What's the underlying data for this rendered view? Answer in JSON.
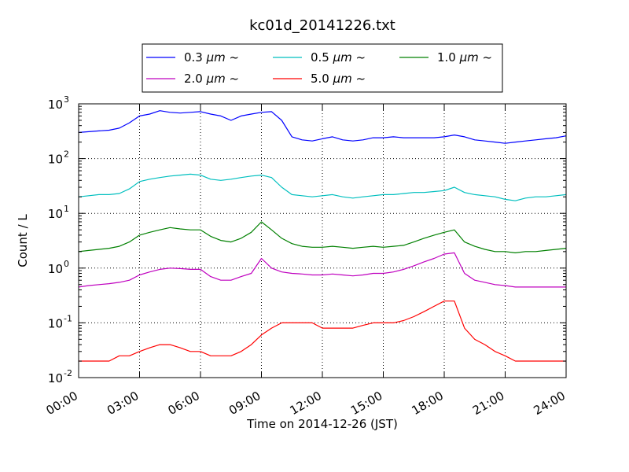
{
  "chart_data": {
    "type": "line",
    "title": "kc01d_20141226.txt",
    "xlabel": "Time on 2014-12-26 (JST)",
    "ylabel": "Count / L",
    "xlim": [
      "2014-12-26 00:00",
      "2014-12-27 00:00"
    ],
    "ylim": [
      0.01,
      1000
    ],
    "yscale": "log",
    "grid": true,
    "legend_position": "top-center",
    "x_ticks": [
      "00:00",
      "03:00",
      "06:00",
      "09:00",
      "12:00",
      "15:00",
      "18:00",
      "21:00",
      "24:00"
    ],
    "y_ticks": [
      {
        "value": 0.01,
        "base": "10",
        "exp": "-2"
      },
      {
        "value": 0.1,
        "base": "10",
        "exp": "-1"
      },
      {
        "value": 1,
        "base": "10",
        "exp": "0"
      },
      {
        "value": 10,
        "base": "10",
        "exp": "1"
      },
      {
        "value": 100,
        "base": "10",
        "exp": "2"
      },
      {
        "value": 1000,
        "base": "10",
        "exp": "3"
      }
    ],
    "x": [
      "00:00",
      "00:30",
      "01:00",
      "01:30",
      "02:00",
      "02:30",
      "03:00",
      "03:30",
      "04:00",
      "04:30",
      "05:00",
      "05:30",
      "06:00",
      "06:30",
      "07:00",
      "07:30",
      "08:00",
      "08:30",
      "09:00",
      "09:30",
      "10:00",
      "10:30",
      "11:00",
      "11:30",
      "12:00",
      "12:30",
      "13:00",
      "13:30",
      "14:00",
      "14:30",
      "15:00",
      "15:30",
      "16:00",
      "16:30",
      "17:00",
      "17:30",
      "18:00",
      "18:30",
      "19:00",
      "19:30",
      "20:00",
      "20:30",
      "21:00",
      "21:30",
      "22:00",
      "22:30",
      "23:00",
      "23:30",
      "24:00"
    ],
    "series": [
      {
        "name": "0.3 μm ~",
        "label_base": "0.3 ",
        "label_unit": "μm",
        "label_suffix": " ~",
        "color": "#0000ff",
        "values": [
          300,
          310,
          320,
          330,
          360,
          450,
          600,
          650,
          750,
          700,
          680,
          700,
          720,
          650,
          600,
          500,
          600,
          650,
          700,
          720,
          500,
          250,
          220,
          210,
          230,
          250,
          220,
          210,
          220,
          240,
          240,
          250,
          240,
          240,
          240,
          240,
          250,
          270,
          250,
          220,
          210,
          200,
          190,
          200,
          210,
          220,
          230,
          240,
          260
        ]
      },
      {
        "name": "0.5 μm ~",
        "label_base": "0.5 ",
        "label_unit": "μm",
        "label_suffix": " ~",
        "color": "#00bfbf",
        "values": [
          20,
          21,
          22,
          22,
          23,
          28,
          38,
          42,
          45,
          48,
          50,
          52,
          50,
          42,
          40,
          42,
          45,
          48,
          50,
          45,
          30,
          22,
          21,
          20,
          21,
          22,
          20,
          19,
          20,
          21,
          22,
          22,
          23,
          24,
          24,
          25,
          26,
          30,
          24,
          22,
          21,
          20,
          18,
          17,
          19,
          20,
          20,
          21,
          22
        ]
      },
      {
        "name": "1.0 μm ~",
        "label_base": "1.0 ",
        "label_unit": "μm",
        "label_suffix": " ~",
        "color": "#008000",
        "values": [
          2.0,
          2.1,
          2.2,
          2.3,
          2.5,
          3.0,
          4.0,
          4.5,
          5.0,
          5.5,
          5.2,
          5.0,
          5.0,
          3.8,
          3.2,
          3.0,
          3.5,
          4.5,
          7.0,
          5.0,
          3.5,
          2.8,
          2.5,
          2.4,
          2.4,
          2.5,
          2.4,
          2.3,
          2.4,
          2.5,
          2.4,
          2.5,
          2.6,
          3.0,
          3.5,
          4.0,
          4.5,
          5.0,
          3.0,
          2.5,
          2.2,
          2.0,
          2.0,
          1.9,
          2.0,
          2.0,
          2.1,
          2.2,
          2.3
        ]
      },
      {
        "name": "2.0 μm ~",
        "label_base": "2.0 ",
        "label_unit": "μm",
        "label_suffix": " ~",
        "color": "#bf00bf",
        "values": [
          0.45,
          0.48,
          0.5,
          0.52,
          0.55,
          0.6,
          0.75,
          0.85,
          0.95,
          1.0,
          0.98,
          0.95,
          0.95,
          0.7,
          0.6,
          0.6,
          0.7,
          0.8,
          1.5,
          1.0,
          0.85,
          0.8,
          0.78,
          0.75,
          0.75,
          0.78,
          0.75,
          0.72,
          0.75,
          0.8,
          0.8,
          0.85,
          0.95,
          1.1,
          1.3,
          1.5,
          1.8,
          1.9,
          0.8,
          0.6,
          0.55,
          0.5,
          0.48,
          0.45,
          0.45,
          0.45,
          0.45,
          0.45,
          0.45
        ]
      },
      {
        "name": "5.0 μm ~",
        "label_base": "5.0 ",
        "label_unit": "μm",
        "label_suffix": " ~",
        "color": "#ff0000",
        "values": [
          0.02,
          0.02,
          0.02,
          0.02,
          0.025,
          0.025,
          0.03,
          0.035,
          0.04,
          0.04,
          0.035,
          0.03,
          0.03,
          0.025,
          0.025,
          0.025,
          0.03,
          0.04,
          0.06,
          0.08,
          0.1,
          0.1,
          0.1,
          0.1,
          0.08,
          0.08,
          0.08,
          0.08,
          0.09,
          0.1,
          0.1,
          0.1,
          0.11,
          0.13,
          0.16,
          0.2,
          0.25,
          0.25,
          0.08,
          0.05,
          0.04,
          0.03,
          0.025,
          0.02,
          0.02,
          0.02,
          0.02,
          0.02,
          0.02
        ]
      }
    ]
  }
}
